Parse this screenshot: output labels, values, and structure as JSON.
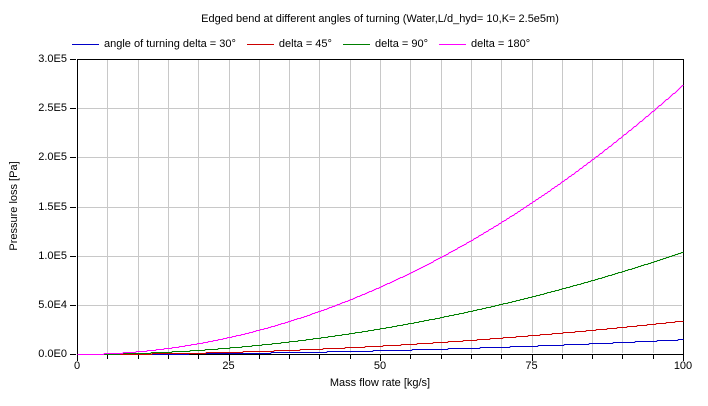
{
  "title": "Edged bend at different angles of turning (Water,L/d_hyd= 10,K= 2.5e5m)",
  "legend": {
    "position": "top",
    "items": [
      {
        "label": "angle of turning delta = 30°",
        "color": "#0000C8"
      },
      {
        "label": "delta = 45°",
        "color": "#CC0000"
      },
      {
        "label": "delta = 90°",
        "color": "#007F00"
      },
      {
        "label": "delta = 180°",
        "color": "#FF00FF"
      }
    ]
  },
  "axes": {
    "x": {
      "label": "Mass flow rate [kg/s]",
      "min": 0,
      "max": 100,
      "major_ticks": [
        0,
        25,
        50,
        75,
        100
      ],
      "major_tick_labels": [
        "0",
        "25",
        "50",
        "75",
        "100"
      ],
      "minor_tick_step": 5,
      "grid_step": 5
    },
    "y": {
      "label": "Pressure loss [Pa]",
      "min": 0,
      "max": 300000,
      "ticks": [
        {
          "value": 0,
          "label": "0.0E0"
        },
        {
          "value": 50000,
          "label": "5.0E4"
        },
        {
          "value": 100000,
          "label": "1.0E5"
        },
        {
          "value": 150000,
          "label": "1.5E5"
        },
        {
          "value": 200000,
          "label": "2.0E5"
        },
        {
          "value": 250000,
          "label": "2.5E5"
        },
        {
          "value": 300000,
          "label": "3.0E5"
        }
      ]
    }
  },
  "colors": {
    "background": "#FFFFFF",
    "axis": "#000000",
    "grid": "#C8C8C8",
    "text": "#000000"
  },
  "chart_data": {
    "type": "line",
    "title": "Edged bend at different angles of turning (Water,L/d_hyd= 10,K= 2.5e5m)",
    "xlabel": "Mass flow rate [kg/s]",
    "ylabel": "Pressure loss [Pa]",
    "xlim": [
      0,
      100
    ],
    "ylim": [
      0,
      300000
    ],
    "grid": true,
    "legend_position": "top",
    "curve_shape": "quadratic (pressure loss proportional to mass flow rate squared), rendered as 1px aliased stair-stepped lines",
    "x": [
      0,
      10,
      20,
      30,
      40,
      50,
      60,
      70,
      80,
      90,
      100
    ],
    "series": [
      {
        "name": "angle of turning delta = 30°",
        "color": "#0000C8",
        "value_at_100": 15000,
        "values": [
          0,
          150,
          600,
          1350,
          2400,
          3750,
          5400,
          7350,
          9600,
          12150,
          15000
        ]
      },
      {
        "name": "delta = 45°",
        "color": "#CC0000",
        "value_at_100": 34000,
        "values": [
          0,
          340,
          1360,
          3060,
          5440,
          8500,
          12240,
          16660,
          21760,
          27540,
          34000
        ]
      },
      {
        "name": "delta = 90°",
        "color": "#007F00",
        "value_at_100": 104000,
        "values": [
          0,
          1040,
          4160,
          9360,
          16640,
          26000,
          37440,
          50960,
          66560,
          84240,
          104000
        ]
      },
      {
        "name": "delta = 180°",
        "color": "#FF00FF",
        "value_at_100": 274000,
        "values": [
          0,
          2740,
          10960,
          24660,
          43840,
          68500,
          98640,
          134260,
          175360,
          221940,
          274000
        ]
      }
    ]
  }
}
